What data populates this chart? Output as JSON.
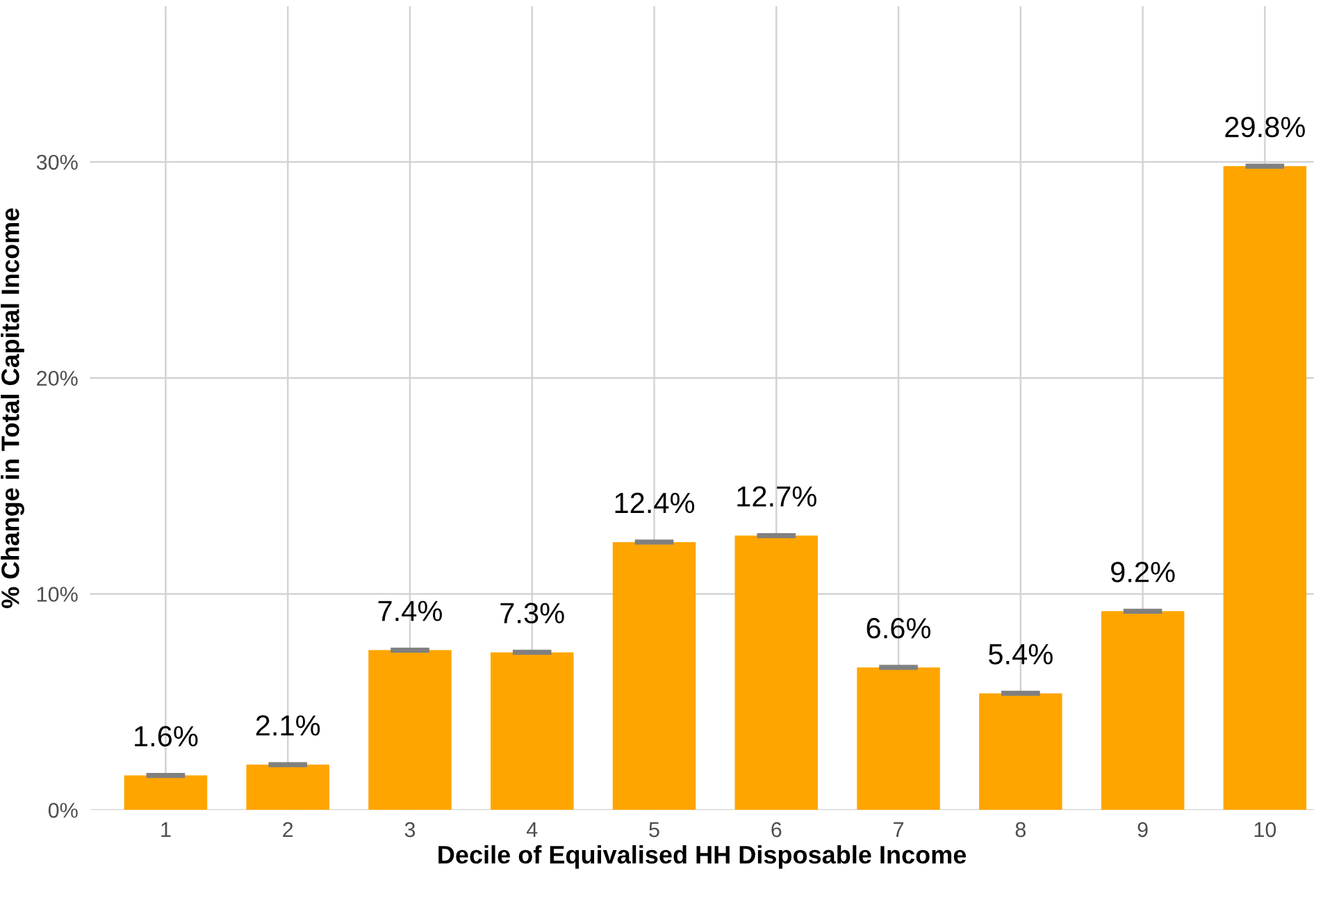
{
  "chart_data": {
    "type": "bar",
    "xlabel": "Decile of Equivalised HH Disposable Income",
    "ylabel": "% Change in Total Capital Income",
    "categories": [
      "1",
      "2",
      "3",
      "4",
      "5",
      "6",
      "7",
      "8",
      "9",
      "10"
    ],
    "values": [
      1.6,
      2.1,
      7.4,
      7.3,
      12.4,
      12.7,
      6.6,
      5.4,
      9.2,
      29.8
    ],
    "value_labels": [
      "1.6%",
      "2.1%",
      "7.4%",
      "7.3%",
      "12.4%",
      "12.7%",
      "6.6%",
      "5.4%",
      "9.2%",
      "29.8%"
    ],
    "errors": [
      0.05,
      0.05,
      0.05,
      0.05,
      0.05,
      0.05,
      0.05,
      0.05,
      0.05,
      0.05
    ],
    "color": "#ffa500",
    "ylim": [
      0,
      37.2
    ],
    "yticks": [
      {
        "value": 0,
        "label": "0%"
      },
      {
        "value": 10,
        "label": "10%"
      },
      {
        "value": 20,
        "label": "20%"
      },
      {
        "value": 30,
        "label": "30%"
      }
    ],
    "grid": true
  }
}
